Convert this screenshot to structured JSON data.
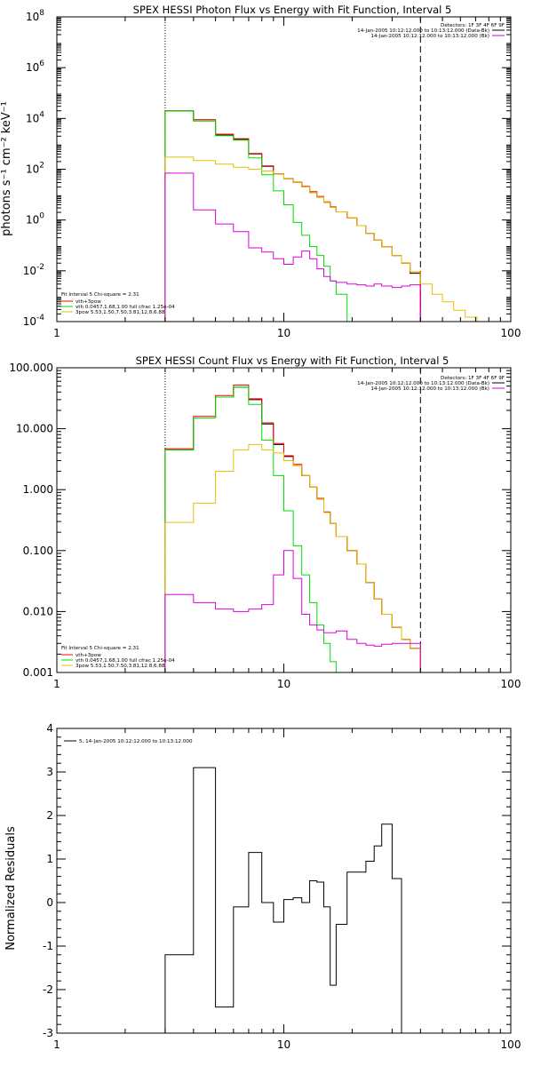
{
  "colors": {
    "black": "#000000",
    "red": "#ff0000",
    "green": "#00dd00",
    "yellow": "#e6c000",
    "magenta": "#dd00dd"
  },
  "chart_data": [
    {
      "type": "line",
      "title": "SPEX HESSI Photon Flux vs Energy with Fit Function, Interval 5",
      "xlabel": "",
      "ylabel": "photons s⁻¹ cm⁻² keV⁻¹",
      "xscale": "log",
      "yscale": "log",
      "xlim": [
        1,
        100
      ],
      "ylim": [
        0.0001,
        100000000
      ],
      "xticks": [
        "1",
        "10",
        "100"
      ],
      "yticks": [
        {
          "base": "10",
          "exp": "-4",
          "v": 0.0001
        },
        {
          "base": "10",
          "exp": "-2",
          "v": 0.01
        },
        {
          "base": "10",
          "exp": "0",
          "v": 1
        },
        {
          "base": "10",
          "exp": "2",
          "v": 100
        },
        {
          "base": "10",
          "exp": "4",
          "v": 10000
        },
        {
          "base": "10",
          "exp": "6",
          "v": 1000000
        },
        {
          "base": "10",
          "exp": "8",
          "v": 100000000
        }
      ],
      "legend_header": [
        "Detectors: 1F 3F 4F 6F 9F",
        "14-Jan-2005 10:12:12.000 to 10:13:12.000 (Data-Bk)",
        "14-Jan-2005 10:12:12.000 to 10:13:12.000 (Bk)"
      ],
      "legend_header_colors": [
        "none",
        "#000000",
        "#dd00dd"
      ],
      "legend_fit": [
        {
          "label": "Fit Interval 5   Chi-square = 2.31",
          "color": "none"
        },
        {
          "label": "vth+3pow",
          "color": "#ff0000"
        },
        {
          "label": "vth 0.0457,1.68,1.00  full cfrac 1.25e-04",
          "color": "#00dd00"
        },
        {
          "label": "3pow 5.53,1.50,7.50,3.81,12.8,6.88",
          "color": "#e6c000"
        }
      ],
      "vlines": [
        {
          "x": 3,
          "style": "dotted"
        },
        {
          "x": 40,
          "style": "dashed"
        }
      ],
      "edges": [
        3,
        4,
        5,
        6,
        7,
        8,
        9,
        10,
        11,
        12,
        13,
        14,
        15,
        16,
        17,
        19,
        21,
        23,
        25,
        27,
        30,
        33,
        36,
        40,
        45,
        50,
        56,
        63,
        71,
        80,
        90
      ],
      "series": [
        {
          "color": "#000000",
          "values": [
            20000,
            8000,
            2200,
            1500,
            400,
            130,
            65,
            42,
            30,
            20,
            12,
            8,
            5,
            3.2,
            2.1,
            1.2,
            0.6,
            0.3,
            0.16,
            0.09,
            0.04,
            0.02,
            0.008
          ]
        },
        {
          "color": "#ff0000",
          "values": [
            20000,
            9000,
            2400,
            1600,
            420,
            135,
            67,
            43,
            31,
            21,
            13,
            8.5,
            5.2,
            3.3,
            2.1,
            1.2,
            0.6,
            0.3,
            0.16,
            0.09,
            0.04,
            0.02,
            0.009
          ]
        },
        {
          "color": "#00dd00",
          "values": [
            20000,
            8000,
            2100,
            1400,
            280,
            60,
            14,
            4,
            0.8,
            0.25,
            0.09,
            0.04,
            0.015,
            0.004,
            0.0012,
            0.0001
          ]
        },
        {
          "color": "#e6c000",
          "values": [
            300,
            220,
            160,
            120,
            100,
            85,
            65,
            42,
            30,
            20,
            12,
            8,
            5,
            3.2,
            2.1,
            1.2,
            0.6,
            0.3,
            0.16,
            0.09,
            0.04,
            0.02,
            0.009,
            0.003,
            0.0012,
            0.0006,
            0.00028,
            0.00015,
            0.0001,
            0.0001
          ]
        },
        {
          "color": "#dd00dd",
          "values": [
            70,
            2.5,
            0.7,
            0.35,
            0.08,
            0.055,
            0.03,
            0.018,
            0.035,
            0.06,
            0.03,
            0.012,
            0.006,
            0.004,
            0.0035,
            0.003,
            0.0028,
            0.0025,
            0.003,
            0.0025,
            0.0022,
            0.0025,
            0.0028
          ]
        }
      ]
    },
    {
      "type": "line",
      "title": "SPEX HESSI Count Flux vs Energy with Fit Function, Interval 5",
      "xlabel": "",
      "ylabel": "",
      "xscale": "log",
      "yscale": "log",
      "xlim": [
        1,
        100
      ],
      "ylim": [
        0.001,
        100
      ],
      "xticks": [
        "1",
        "10",
        "100"
      ],
      "yticks": [
        {
          "label": "0.001",
          "v": 0.001
        },
        {
          "label": "0.010",
          "v": 0.01
        },
        {
          "label": "0.100",
          "v": 0.1
        },
        {
          "label": "1.000",
          "v": 1
        },
        {
          "label": "10.000",
          "v": 10
        },
        {
          "label": "100.000",
          "v": 100
        }
      ],
      "legend_header": [
        "Detectors: 1F 3F 4F 6F 9F",
        "14-Jan-2005 10:12:12.000 to 10:13:12.000 (Data-Bk)",
        "14-Jan-2005 10:12:12.000 to 10:13:12.000 (Bk)"
      ],
      "legend_header_colors": [
        "none",
        "#000000",
        "#dd00dd"
      ],
      "legend_fit": [
        {
          "label": "Fit Interval 5   Chi-square = 2.31",
          "color": "none"
        },
        {
          "label": "vth+3pow",
          "color": "#ff0000"
        },
        {
          "label": "vth 0.0457,1.68,1.00  full cfrac 1.25e-04",
          "color": "#00dd00"
        },
        {
          "label": "3pow 5.53,1.50,7.50,3.81,12.8,6.88",
          "color": "#e6c000"
        }
      ],
      "vlines": [
        {
          "x": 3,
          "style": "dotted"
        },
        {
          "x": 40,
          "style": "dashed"
        }
      ],
      "edges": [
        3,
        4,
        5,
        6,
        7,
        8,
        9,
        10,
        11,
        12,
        13,
        14,
        15,
        16,
        17,
        19,
        21,
        23,
        25,
        27,
        30,
        33,
        36,
        40
      ],
      "series": [
        {
          "color": "#000000",
          "values": [
            4.5,
            15,
            33,
            48,
            30,
            12,
            5.5,
            3.5,
            2.5,
            1.7,
            1.1,
            0.7,
            0.42,
            0.28,
            0.17,
            0.1,
            0.06,
            0.03,
            0.016,
            0.009,
            0.0055,
            0.0035,
            0.0025
          ]
        },
        {
          "color": "#ff0000",
          "values": [
            4.7,
            16,
            35,
            52,
            31,
            12.5,
            5.7,
            3.6,
            2.6,
            1.7,
            1.1,
            0.72,
            0.43,
            0.28,
            0.17,
            0.1,
            0.06,
            0.03,
            0.016,
            0.009,
            0.0055,
            0.0035,
            0.0025
          ]
        },
        {
          "color": "#00dd00",
          "values": [
            4.5,
            15,
            33,
            48,
            25,
            6.5,
            1.7,
            0.45,
            0.12,
            0.04,
            0.014,
            0.006,
            0.003,
            0.0015,
            0.001
          ]
        },
        {
          "color": "#e6c000",
          "values": [
            0.29,
            0.6,
            2.0,
            4.5,
            5.5,
            4.5,
            4.0,
            3.0,
            2.5,
            1.7,
            1.1,
            0.7,
            0.42,
            0.28,
            0.17,
            0.1,
            0.06,
            0.03,
            0.016,
            0.009,
            0.0055,
            0.0035,
            0.0025
          ]
        },
        {
          "color": "#dd00dd",
          "values": [
            0.019,
            0.014,
            0.011,
            0.01,
            0.011,
            0.013,
            0.04,
            0.1,
            0.035,
            0.009,
            0.006,
            0.005,
            0.0045,
            0.0045,
            0.0048,
            0.0035,
            0.003,
            0.0028,
            0.0027,
            0.0029,
            0.003,
            0.003,
            0.003
          ]
        }
      ]
    },
    {
      "type": "line",
      "title": "",
      "xlabel": "",
      "ylabel": "Normalized Residuals",
      "xscale": "log",
      "yscale": "linear",
      "xlim": [
        1,
        100
      ],
      "ylim": [
        -3,
        4
      ],
      "xticks": [
        "1",
        "10",
        "100"
      ],
      "yticks": [
        {
          "label": "-3",
          "v": -3
        },
        {
          "label": "-2",
          "v": -2
        },
        {
          "label": "-1",
          "v": -1
        },
        {
          "label": "0",
          "v": 0
        },
        {
          "label": "1",
          "v": 1
        },
        {
          "label": "2",
          "v": 2
        },
        {
          "label": "3",
          "v": 3
        },
        {
          "label": "4",
          "v": 4
        }
      ],
      "legend_label": "5, 14-Jan-2005 10:12:12.000 to 10:13:12.000",
      "edges": [
        3,
        4,
        5,
        6,
        7,
        8,
        9,
        10,
        11,
        12,
        13,
        14,
        15,
        16,
        17,
        19,
        21,
        23,
        25,
        27,
        30,
        33,
        36,
        40
      ],
      "series": [
        {
          "color": "#000000",
          "values": [
            -1.2,
            3.1,
            -2.4,
            -0.1,
            1.15,
            0.0,
            -0.45,
            0.07,
            0.11,
            0.0,
            0.5,
            0.47,
            -0.1,
            -1.9,
            -0.5,
            0.7,
            0.7,
            0.95,
            1.3,
            1.8,
            0.55
          ]
        }
      ]
    }
  ]
}
